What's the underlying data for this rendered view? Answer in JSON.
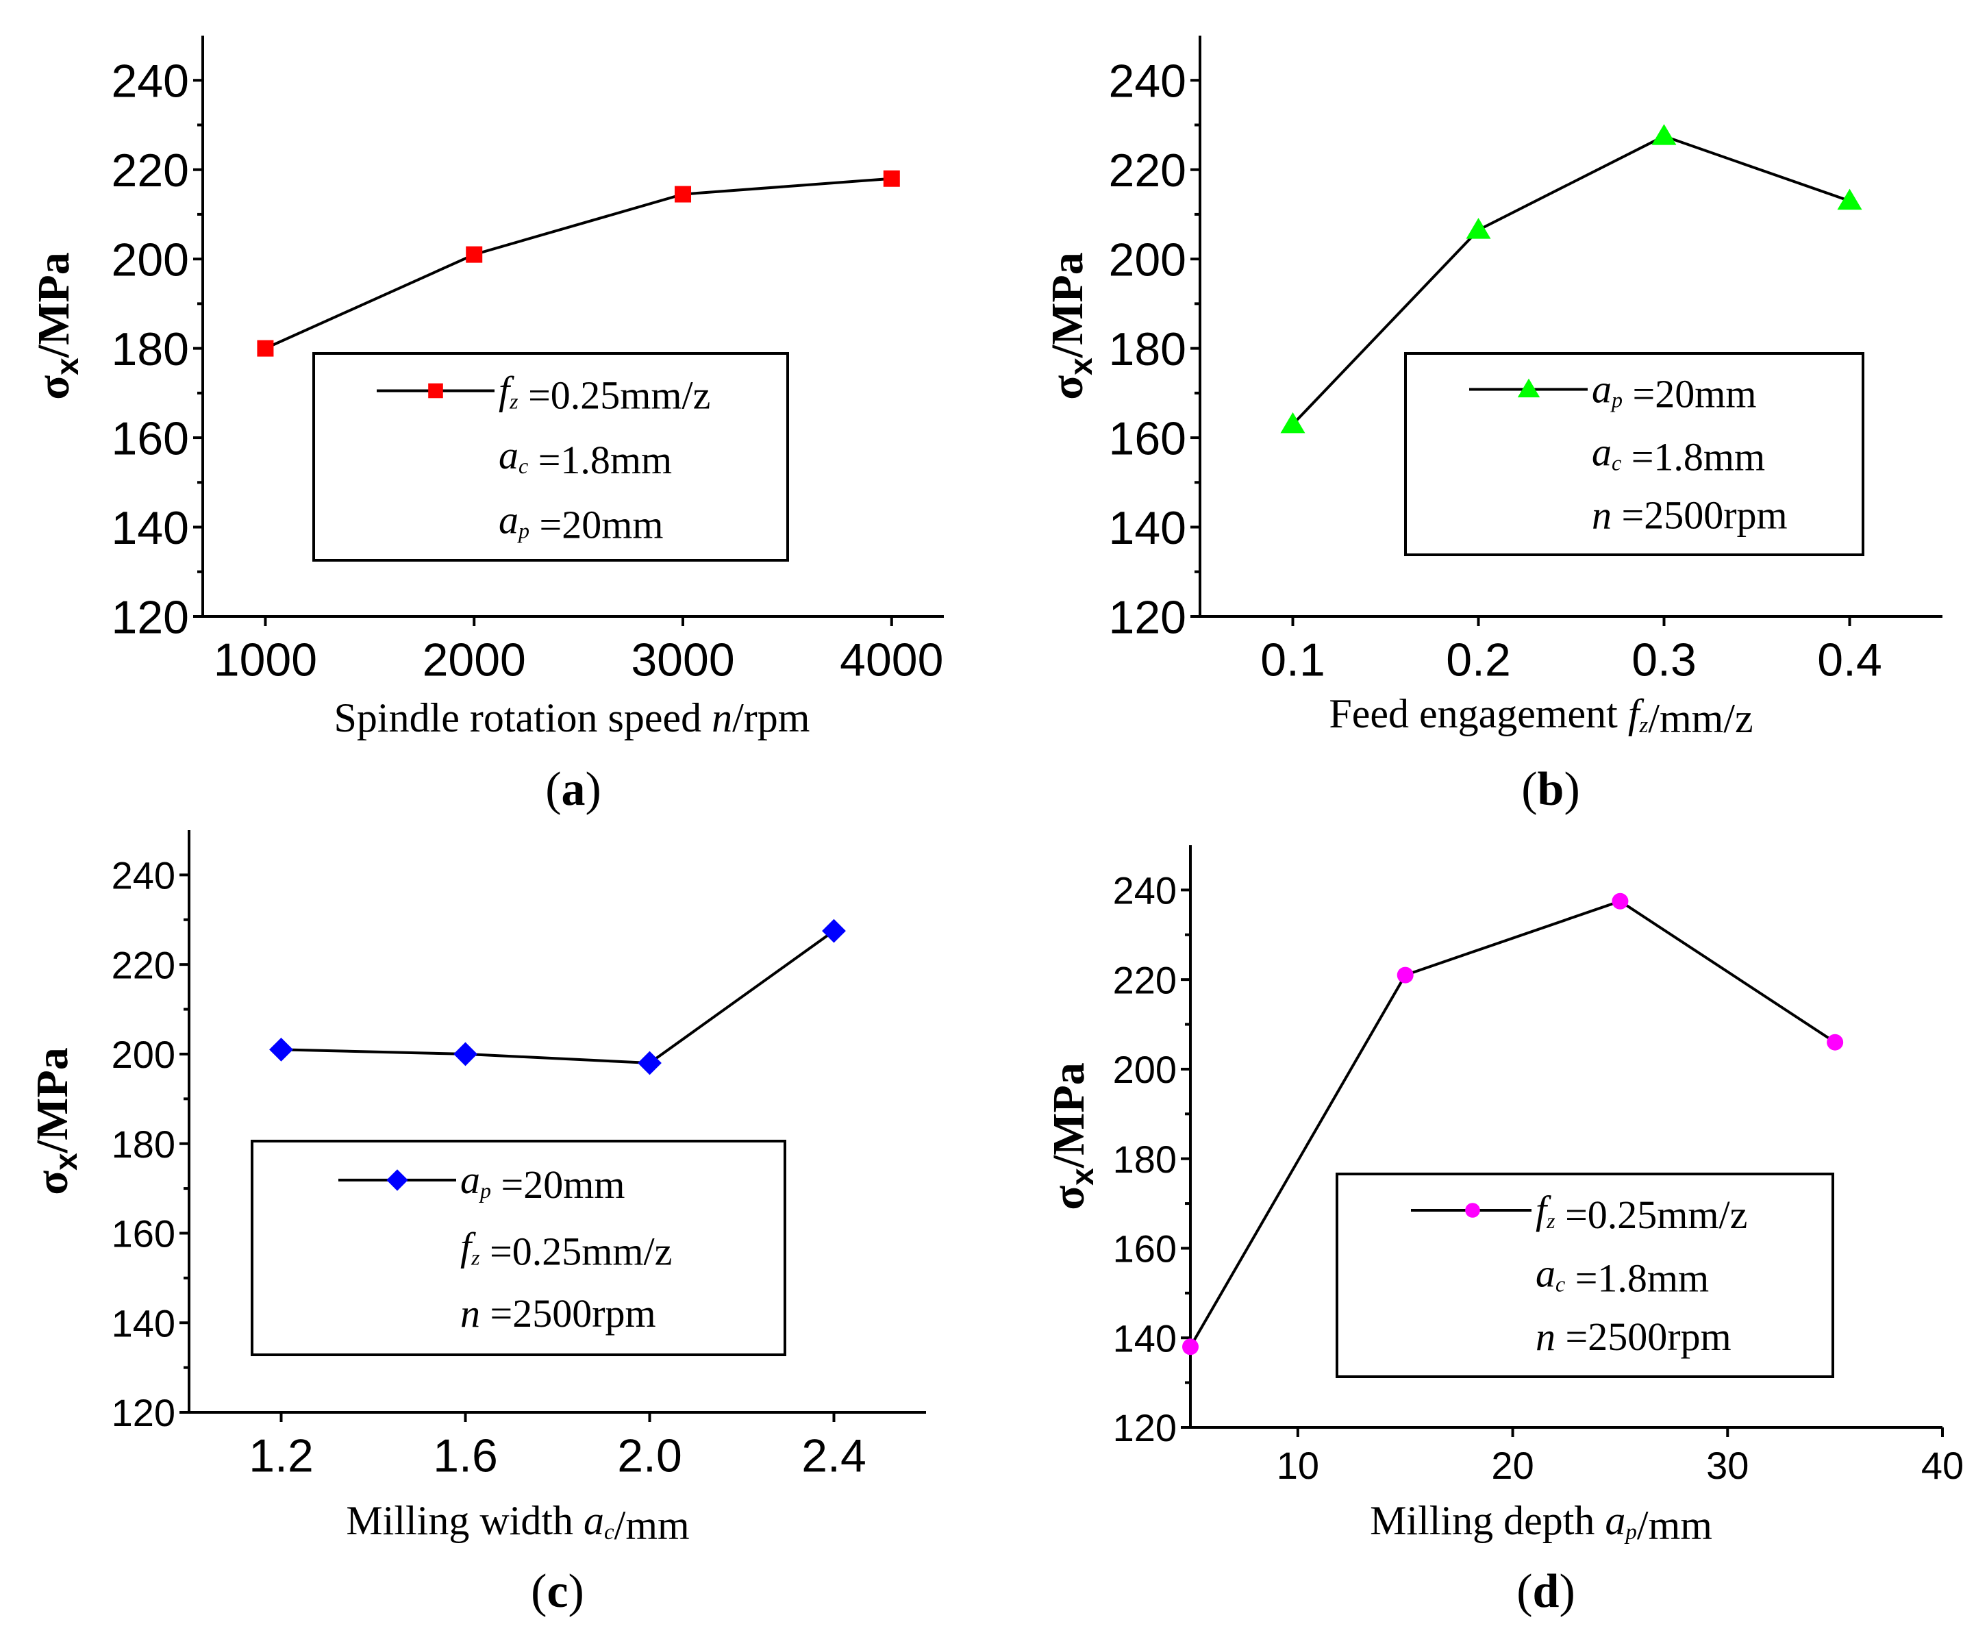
{
  "chart_data": [
    {
      "type": "line",
      "panel": "(a)",
      "panel_letter": "a",
      "xlabel_parts": [
        {
          "t": "Spindle rotation speed ",
          "i": false
        },
        {
          "t": "n",
          "i": true
        },
        {
          "t": "/rpm",
          "i": false
        }
      ],
      "ylabel": "σx/MPa",
      "x": [
        1000,
        2000,
        3000,
        4000
      ],
      "y": [
        180,
        201,
        214.5,
        218
      ],
      "xlim": [
        700,
        4250
      ],
      "ylim": [
        120,
        250
      ],
      "xticks": [
        1000,
        2000,
        3000,
        4000
      ],
      "xtick_labels": [
        "1000",
        "2000",
        "3000",
        "4000"
      ],
      "yticks": [
        120,
        140,
        160,
        180,
        200,
        220,
        240
      ],
      "ytick_labels": [
        "120",
        "140",
        "160",
        "180",
        "200",
        "220",
        "240"
      ],
      "marker": "square",
      "color": "#ff0000",
      "legend": [
        [
          {
            "t": "f",
            "i": true
          },
          {
            "t": "z",
            "i": true,
            "sub": true
          },
          {
            "t": " =0.25mm/z",
            "i": false
          }
        ],
        [
          {
            "t": "a",
            "i": true
          },
          {
            "t": "c",
            "i": true,
            "sub": true
          },
          {
            "t": " =1.8mm",
            "i": false
          }
        ],
        [
          {
            "t": "a",
            "i": true
          },
          {
            "t": "p",
            "i": true,
            "sub": true
          },
          {
            "t": " =20mm",
            "i": false
          }
        ]
      ]
    },
    {
      "type": "line",
      "panel": "(b)",
      "panel_letter": "b",
      "xlabel_parts": [
        {
          "t": "Feed engagement ",
          "i": false
        },
        {
          "t": "f",
          "i": true
        },
        {
          "t": "z",
          "i": true,
          "sub": true
        },
        {
          "t": "/mm/z",
          "i": false
        }
      ],
      "ylabel": "σx/MPa",
      "x": [
        0.1,
        0.2,
        0.3,
        0.4
      ],
      "y": [
        163,
        206.5,
        227.5,
        213
      ],
      "xlim": [
        0.05,
        0.45
      ],
      "ylim": [
        120,
        250
      ],
      "xticks": [
        0.1,
        0.2,
        0.3,
        0.4
      ],
      "xtick_labels": [
        "0.1",
        "0.2",
        "0.3",
        "0.4"
      ],
      "yticks": [
        120,
        140,
        160,
        180,
        200,
        220,
        240
      ],
      "ytick_labels": [
        "120",
        "140",
        "160",
        "180",
        "200",
        "220",
        "240"
      ],
      "marker": "triangle",
      "color": "#00ff00",
      "legend": [
        [
          {
            "t": "a",
            "i": true
          },
          {
            "t": "p",
            "i": true,
            "sub": true
          },
          {
            "t": " =20mm",
            "i": false
          }
        ],
        [
          {
            "t": "a",
            "i": true
          },
          {
            "t": "c",
            "i": true,
            "sub": true
          },
          {
            "t": " =1.8mm",
            "i": false
          }
        ],
        [
          {
            "t": "n",
            "i": true
          },
          {
            "t": " =2500rpm",
            "i": false
          }
        ]
      ]
    },
    {
      "type": "line",
      "panel": "(c)",
      "panel_letter": "c",
      "xlabel_parts": [
        {
          "t": "Milling width ",
          "i": false
        },
        {
          "t": "a",
          "i": true
        },
        {
          "t": "c",
          "i": true,
          "sub": true
        },
        {
          "t": "/mm",
          "i": false
        }
      ],
      "ylabel": "σx/MPa",
      "x": [
        1.2,
        1.6,
        2.0,
        2.4
      ],
      "y": [
        201,
        200,
        198,
        227.5
      ],
      "xlim": [
        1.0,
        2.6
      ],
      "ylim": [
        120,
        250
      ],
      "xticks": [
        1.2,
        1.6,
        2.0,
        2.4
      ],
      "xtick_labels": [
        "1.2",
        "1.6",
        "2.0",
        "2.4"
      ],
      "yticks": [
        120,
        140,
        160,
        180,
        200,
        220,
        240
      ],
      "ytick_labels": [
        "120",
        "140",
        "160",
        "180",
        "200",
        "220",
        "240"
      ],
      "marker": "diamond",
      "color": "#0000ff",
      "legend": [
        [
          {
            "t": "a",
            "i": true
          },
          {
            "t": "p",
            "i": true,
            "sub": true
          },
          {
            "t": " =20mm",
            "i": false
          }
        ],
        [
          {
            "t": "f",
            "i": true
          },
          {
            "t": "z",
            "i": true,
            "sub": true
          },
          {
            "t": " =0.25mm/z",
            "i": false
          }
        ],
        [
          {
            "t": "n",
            "i": true
          },
          {
            "t": " =2500rpm",
            "i": false
          }
        ]
      ]
    },
    {
      "type": "line",
      "panel": "(d)",
      "panel_letter": "d",
      "xlabel_parts": [
        {
          "t": "Milling depth ",
          "i": false
        },
        {
          "t": "a",
          "i": true
        },
        {
          "t": "p",
          "i": true,
          "sub": true
        },
        {
          "t": "/mm",
          "i": false
        }
      ],
      "ylabel": "σx/MPa",
      "x": [
        5,
        15,
        25,
        35
      ],
      "y": [
        138,
        221,
        237.5,
        206
      ],
      "xlim": [
        5,
        40
      ],
      "ylim": [
        120,
        250
      ],
      "xticks": [
        10,
        20,
        30,
        40
      ],
      "xtick_labels": [
        "10",
        "20",
        "30",
        "40"
      ],
      "yticks": [
        120,
        140,
        160,
        180,
        200,
        220,
        240
      ],
      "ytick_labels": [
        "120",
        "140",
        "160",
        "180",
        "200",
        "220",
        "240"
      ],
      "marker": "circle",
      "color": "#ff00ff",
      "legend": [
        [
          {
            "t": "f",
            "i": true
          },
          {
            "t": "z",
            "i": true,
            "sub": true
          },
          {
            "t": " =0.25mm/z",
            "i": false
          }
        ],
        [
          {
            "t": "a",
            "i": true
          },
          {
            "t": "c",
            "i": true,
            "sub": true
          },
          {
            "t": " =1.8mm",
            "i": false
          }
        ],
        [
          {
            "t": "n",
            "i": true
          },
          {
            "t": " =2500rpm",
            "i": false
          }
        ]
      ]
    }
  ]
}
